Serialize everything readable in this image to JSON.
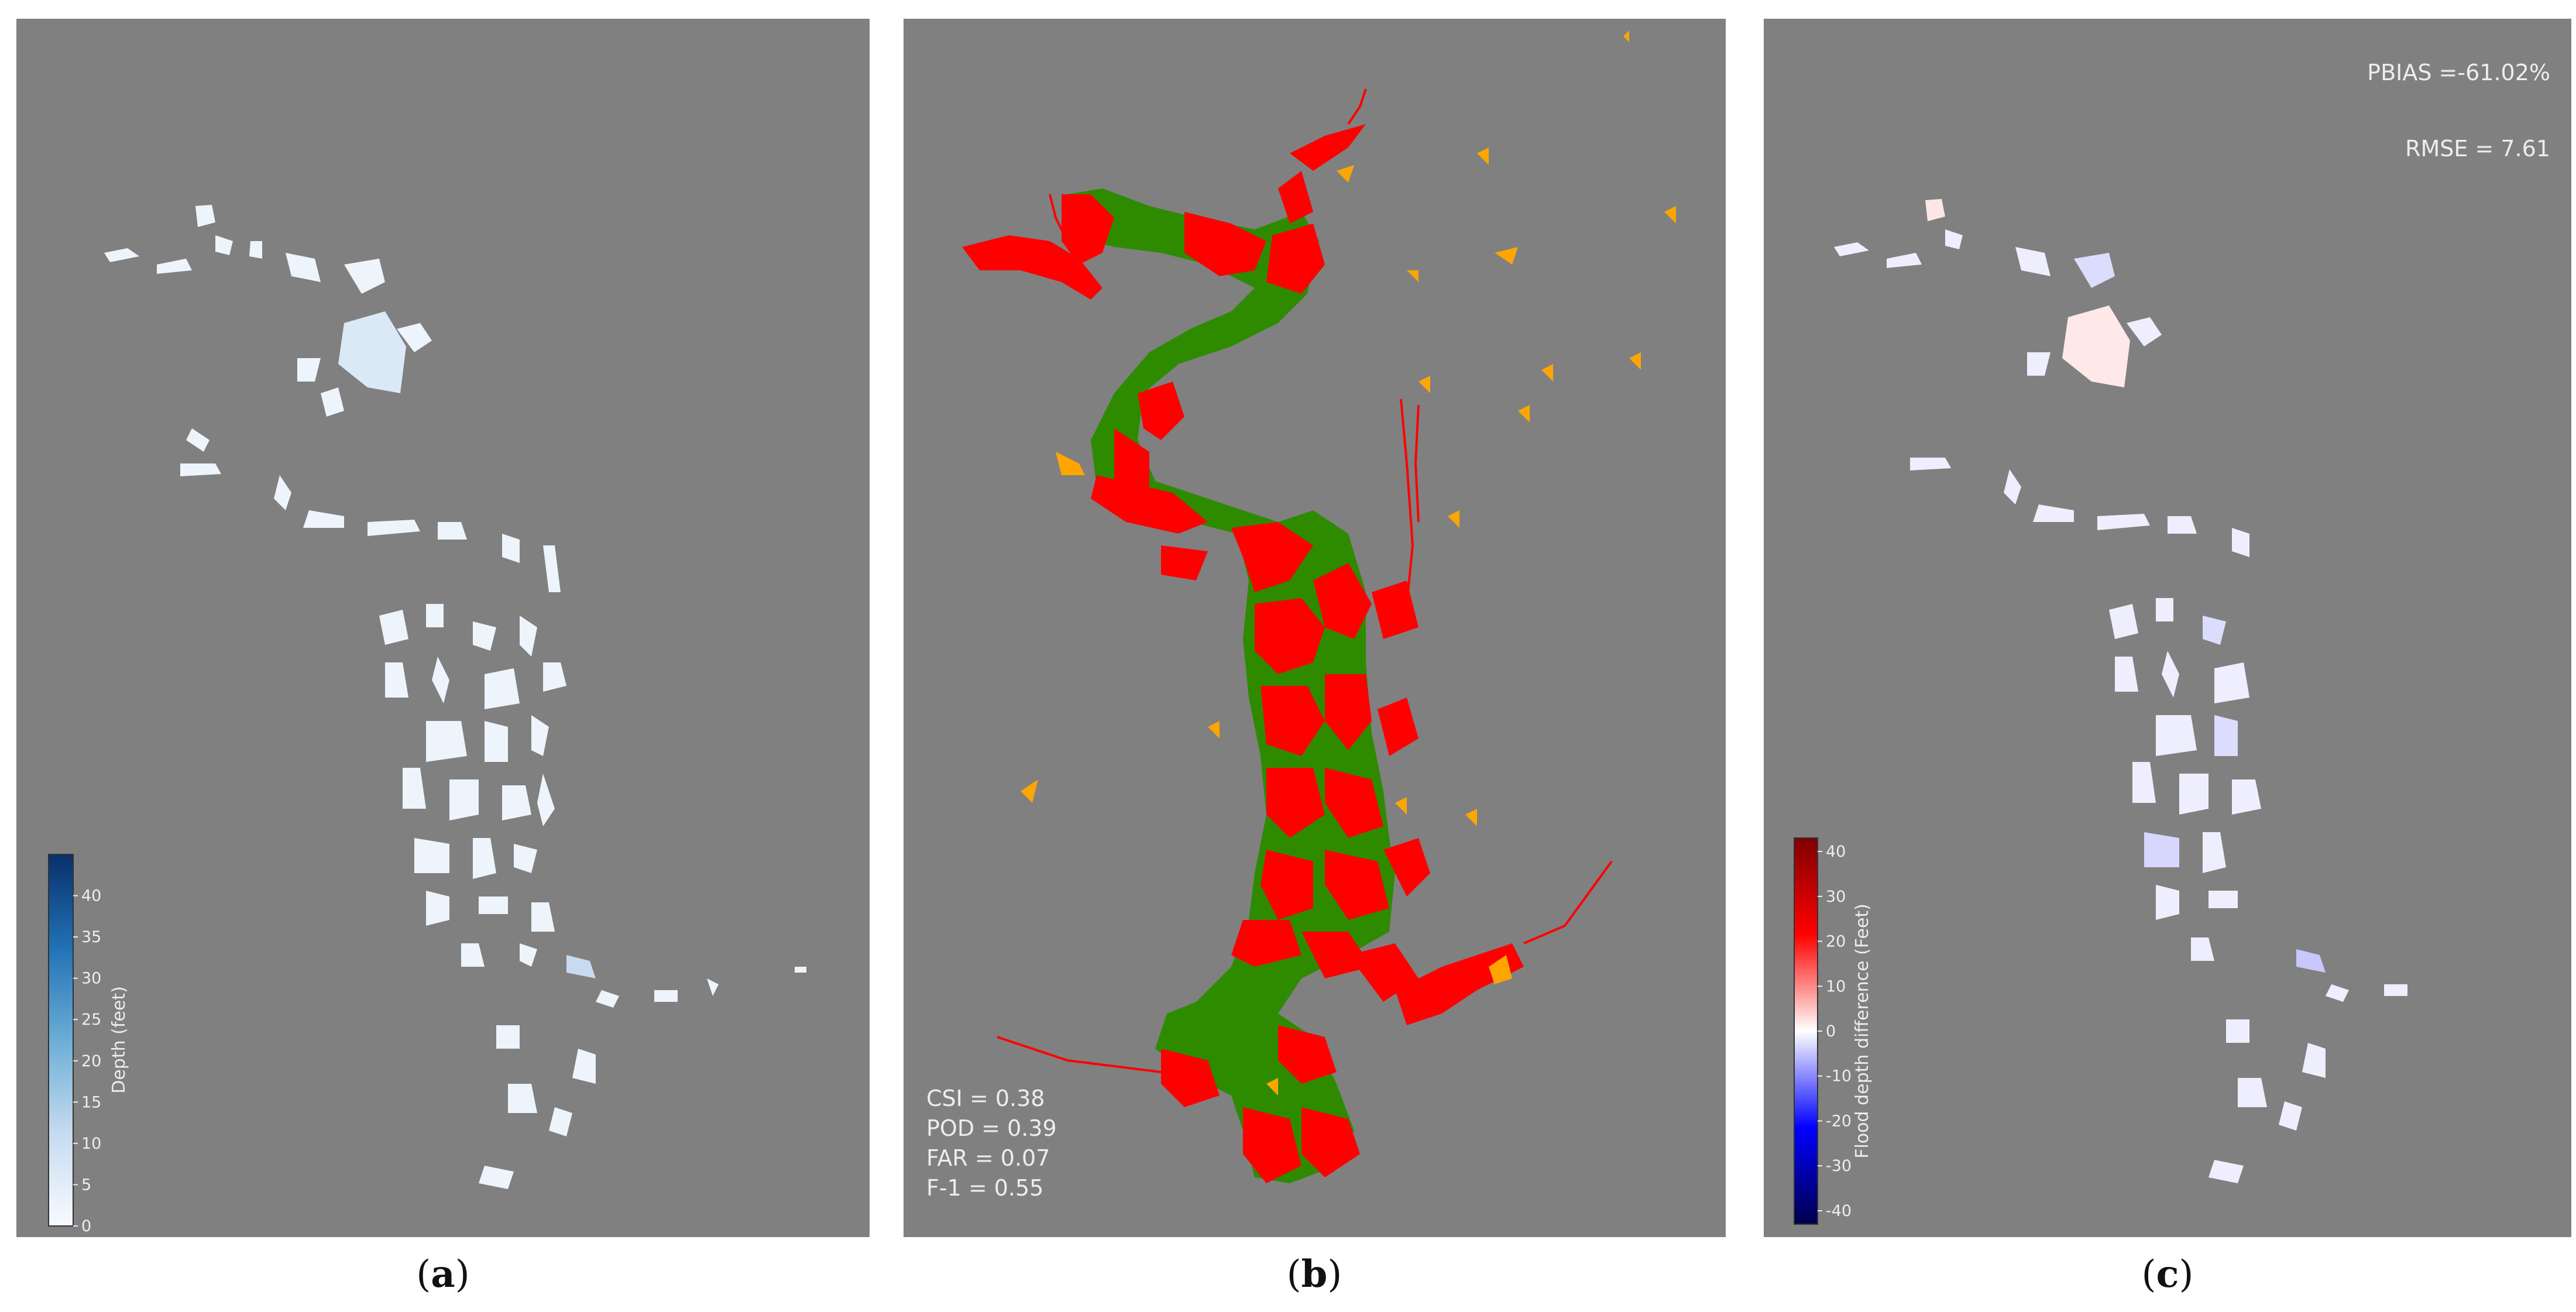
{
  "panels": {
    "a": {
      "caption_open": "(",
      "caption_letter": "a",
      "caption_close": ")",
      "colorbar": {
        "label": "Depth (feet)",
        "ticks": [
          "0",
          "5",
          "10",
          "15",
          "20",
          "25",
          "30",
          "35",
          "40"
        ],
        "min": 0,
        "max": 45,
        "colors": [
          "#f7fbff",
          "#c6dbef",
          "#6baed6",
          "#2171b5",
          "#08306b"
        ]
      }
    },
    "b": {
      "caption_open": "(",
      "caption_letter": "b",
      "caption_close": ")",
      "metrics": [
        "CSI = 0.38",
        "POD = 0.39",
        "FAR = 0.07",
        "F-1 = 0.55"
      ],
      "colors": {
        "hit": "#2e8b00",
        "miss": "#ff0000",
        "false_alarm": "#ffa500"
      }
    },
    "c": {
      "caption_open": "(",
      "caption_letter": "c",
      "caption_close": ")",
      "pbias": "PBIAS =-61.02%",
      "rmse": "RMSE = 7.61",
      "colorbar": {
        "label": "Flood depth difference (Feet)",
        "ticks": [
          "-40",
          "-30",
          "-20",
          "-10",
          "0",
          "10",
          "20",
          "30",
          "40"
        ],
        "min": -43,
        "max": 43,
        "colors": [
          "#00004c",
          "#0000ff",
          "#ffffff",
          "#ff0000",
          "#7f0000"
        ]
      }
    }
  },
  "background_color": "#808080"
}
